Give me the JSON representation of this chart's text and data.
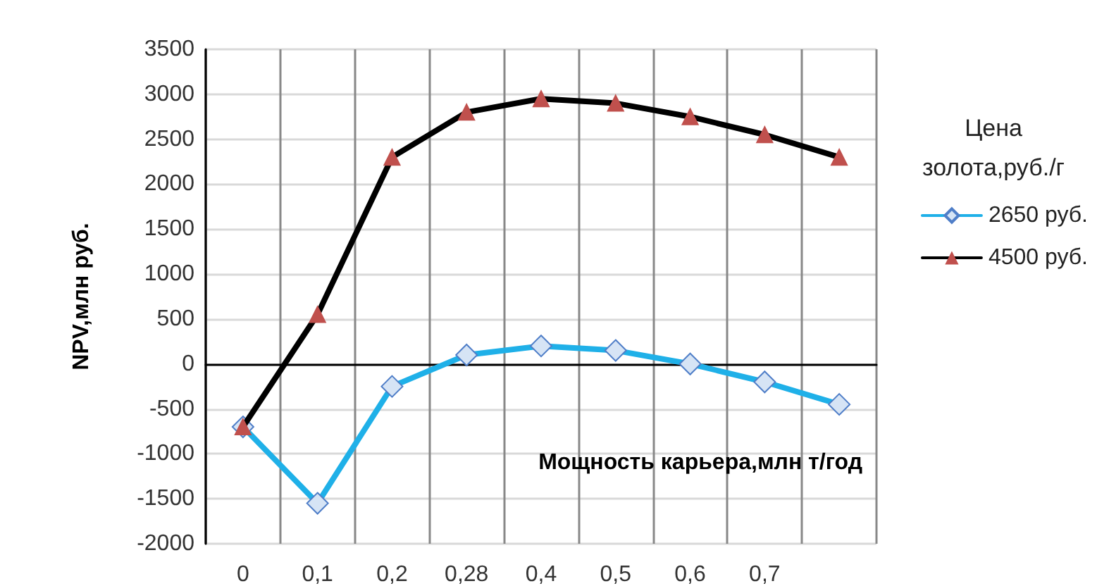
{
  "chart_data": {
    "type": "line",
    "xlabel": "Мощность карьера,млн т/год",
    "ylabel": "NPV,млн руб.",
    "legend_title": "Цена золота,руб./г",
    "categories": [
      "0",
      "0,1",
      "0,2",
      "0,28",
      "0,4",
      "0,5",
      "0,6",
      "0,7",
      null
    ],
    "series": [
      {
        "name": "2650 руб.",
        "color": "#1fb0e8",
        "marker": "diamond",
        "values": [
          -700,
          -1550,
          -250,
          100,
          200,
          150,
          0,
          -200,
          -450
        ]
      },
      {
        "name": "4500 руб.",
        "color": "#000000",
        "marker": "triangle",
        "values": [
          -700,
          550,
          2300,
          2800,
          2950,
          2900,
          2750,
          2550,
          2300
        ]
      }
    ],
    "ylim": [
      -2000,
      3500
    ],
    "yticks": [
      -2000,
      -1500,
      -1000,
      -500,
      0,
      500,
      1000,
      1500,
      2000,
      2500,
      3000,
      3500
    ],
    "grid": true,
    "legend": "right",
    "line_style": "solid"
  }
}
